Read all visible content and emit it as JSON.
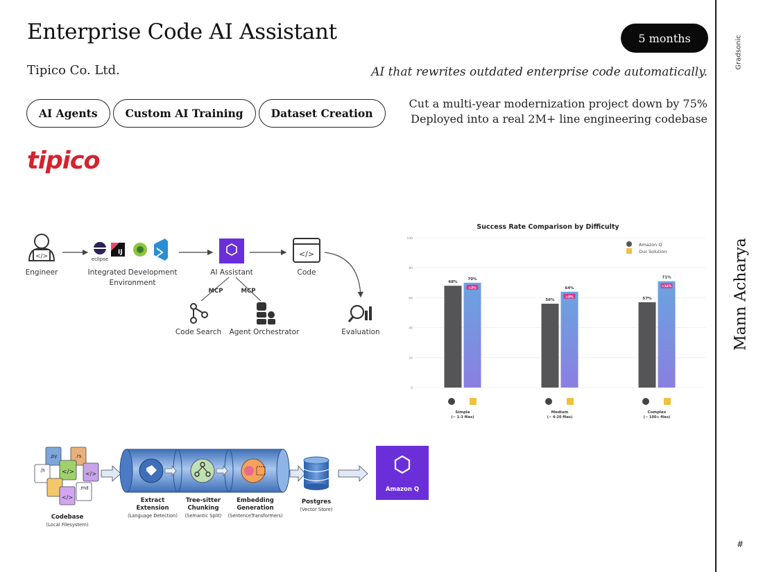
{
  "header": {
    "title": "Enterprise Code AI Assistant",
    "duration": "5 months",
    "company": "Tipico Co. Ltd.",
    "tagline": "AI that rewrites outdated enterprise code automatically.",
    "highlight_1": "Cut a multi-year modernization project down by 75%",
    "highlight_2": "Deployed into a real 2M+ line engineering codebase"
  },
  "tags": [
    "AI Agents",
    "Custom AI Training",
    "Dataset Creation"
  ],
  "logo": "tipico",
  "sidebar": {
    "brand": "Gradsonic",
    "author": "Mann Acharya",
    "page": "#"
  },
  "architecture": {
    "engineer": "Engineer",
    "ide_line1": "Integrated Development",
    "ide_line2": "Environment",
    "ide_eclipse": "eclipse",
    "assistant": "AI Assistant",
    "code": "Code",
    "mcp_1": "MCP",
    "mcp_2": "MCP",
    "code_search": "Code Search",
    "agent_orchestrator": "Agent Orchestrator",
    "evaluation": "Evaluation"
  },
  "chart_data": {
    "type": "bar",
    "title": "Success Rate Comparison by Difficulty",
    "categories": [
      "Simple",
      "Medium",
      "Complex"
    ],
    "category_subtitles": [
      "(~ 1-3 files)",
      "(~ 4-20 files)",
      "(~ 100+ files)"
    ],
    "series": [
      {
        "name": "Amazon Q",
        "values": [
          68,
          56,
          57
        ],
        "color": "#555558"
      },
      {
        "name": "Our Solution",
        "values": [
          70,
          64,
          71
        ],
        "color": "#6aa3e0"
      }
    ],
    "value_labels": [
      [
        "68%",
        "70%"
      ],
      [
        "56%",
        "64%"
      ],
      [
        "57%",
        "71%"
      ]
    ],
    "gain_labels": [
      "+2%",
      "+8%",
      "+14%"
    ],
    "yticks": [
      0,
      20,
      40,
      60,
      80,
      100
    ],
    "ylim": [
      0,
      100
    ],
    "legend_position": "top-right"
  },
  "pipeline": {
    "codebase": "Codebase",
    "codebase_sub": "(Local Filesystem)",
    "file_exts": [
      ".py",
      ".rs",
      ".js",
      ".md"
    ],
    "step1_line1": "Extract",
    "step1_line2": "Extension",
    "step1_sub": "(Language Detection)",
    "step2_line1": "Tree-sitter",
    "step2_line2": "Chunking",
    "step2_sub": "(Semantic Split)",
    "step3_line1": "Embedding",
    "step3_line2": "Generation",
    "step3_sub": "(SentenceTransformers)",
    "store": "Postgres",
    "store_sub": "(Vector Store)",
    "target": "Amazon Q"
  },
  "colors": {
    "accent": "#d4232e",
    "amazon_q": "#6b2fd9",
    "pipe_blue": "#5b8fd6"
  }
}
